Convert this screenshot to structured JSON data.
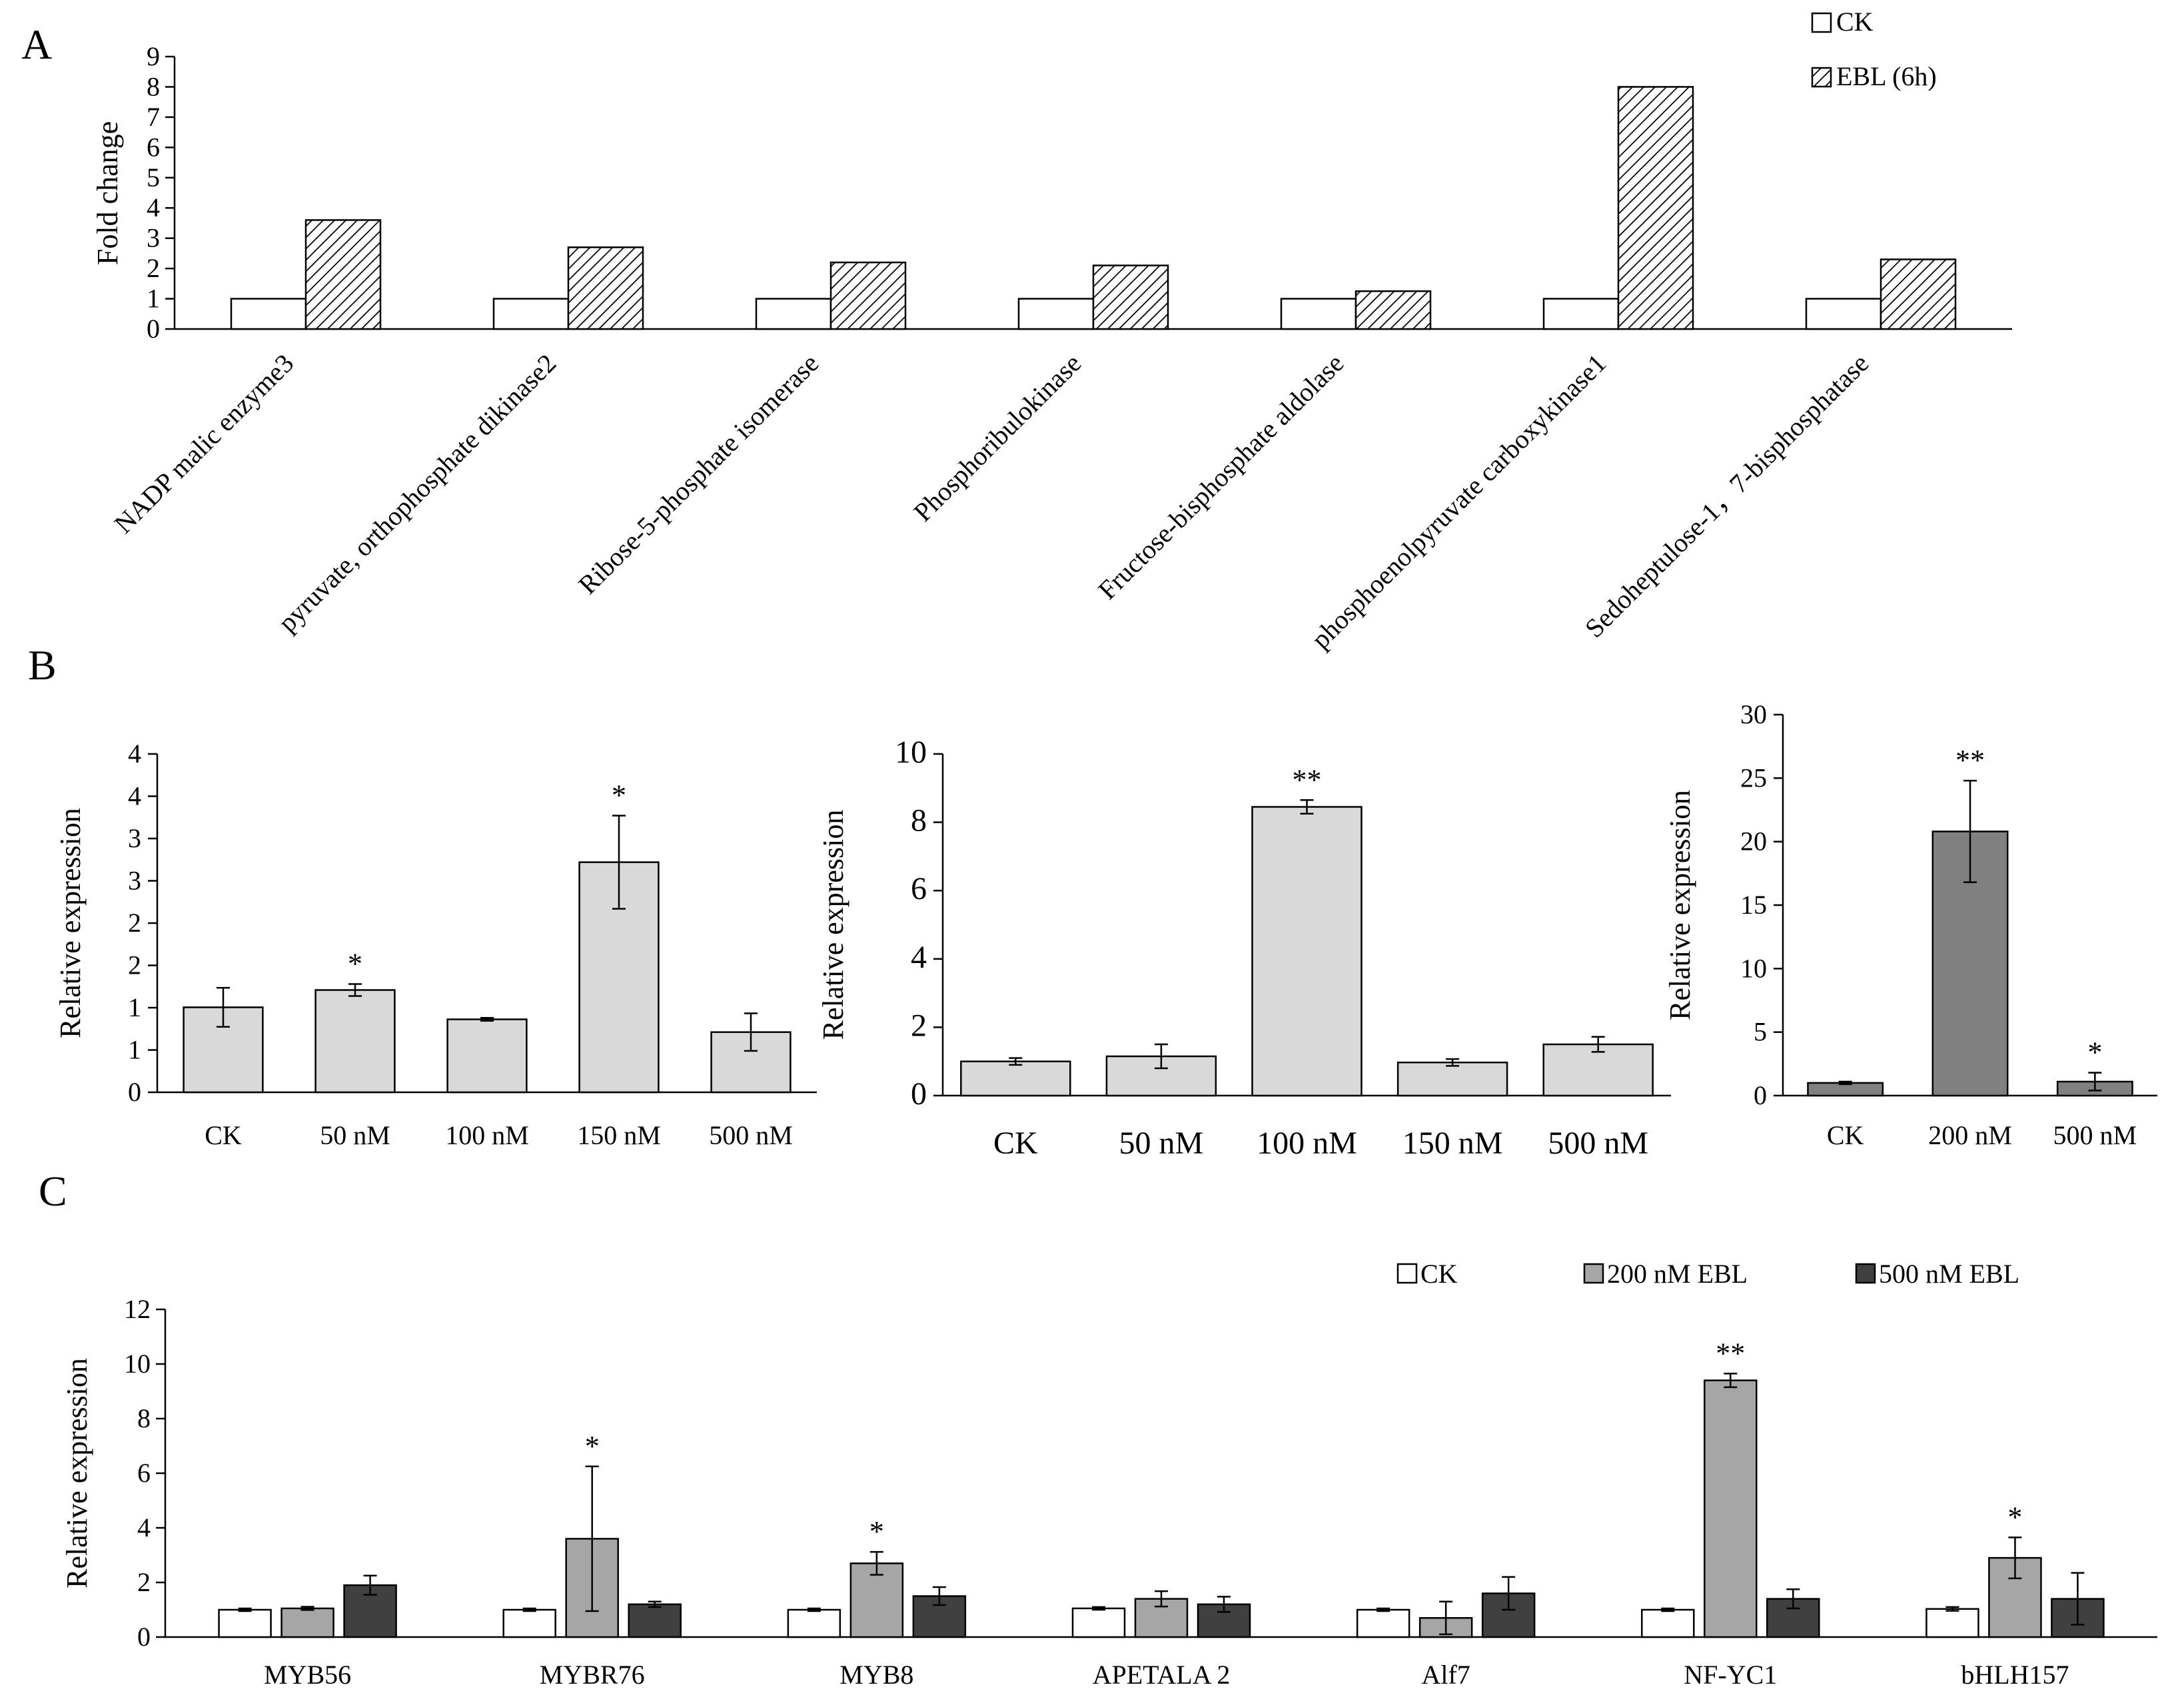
{
  "panels": {
    "a": "A",
    "b": "B",
    "c": "C"
  },
  "colors": {
    "ck": "#ffffff",
    "light_gray": "#d9d9d9",
    "mid_gray": "#a6a6a6",
    "dark_gray": "#808080",
    "very_dark": "#404040",
    "outline": "#000000"
  },
  "chart_data": [
    {
      "id": "A",
      "type": "bar",
      "title": "",
      "ylabel": "Fold change",
      "xlabel": "",
      "ylim": [
        0,
        9
      ],
      "yticks": [
        0,
        1,
        2,
        3,
        4,
        5,
        6,
        7,
        8,
        9
      ],
      "categories": [
        "NADP malic enzyme3",
        "pyruvate, orthophosphate dikinase2",
        "Ribose-5-phosphate isomerase",
        "Phosphoribulokinase",
        "Fructose-bisphosphate aldolase",
        "phosphoenolpyruvate carboxykinase1",
        "Sedoheptulose-1，7-bisphosphatase"
      ],
      "series": [
        {
          "name": "CK",
          "values": [
            1,
            1,
            1,
            1,
            1,
            1,
            1
          ]
        },
        {
          "name": "EBL (6h)",
          "values": [
            3.6,
            2.7,
            2.2,
            2.1,
            1.25,
            8.0,
            2.3
          ]
        }
      ],
      "legend": "top-right"
    },
    {
      "id": "B1",
      "type": "bar",
      "ylabel": "Relative expression",
      "ylim": [
        0,
        4.5
      ],
      "ytick_labels": [
        "0",
        "1",
        "1",
        "2",
        "2",
        "3",
        "3",
        "4",
        "4"
      ],
      "categories": [
        "CK",
        "50 nM",
        "100 nM",
        "150 nM",
        "500 nM"
      ],
      "values": [
        1.13,
        1.36,
        0.97,
        3.06,
        0.8
      ],
      "errors": [
        0.26,
        0.08,
        0.02,
        0.62,
        0.25
      ],
      "annotations": [
        "",
        "*",
        "",
        "*",
        ""
      ]
    },
    {
      "id": "B2",
      "type": "bar",
      "ylabel": "Relative expression",
      "ylim": [
        0,
        10
      ],
      "yticks": [
        0,
        2,
        4,
        6,
        8,
        10
      ],
      "categories": [
        "CK",
        "50 nM",
        "100 nM",
        "150 nM",
        "500 nM"
      ],
      "values": [
        1.0,
        1.15,
        8.45,
        0.97,
        1.5
      ],
      "errors": [
        0.1,
        0.35,
        0.2,
        0.1,
        0.22
      ],
      "annotations": [
        "",
        "",
        "**",
        "",
        ""
      ]
    },
    {
      "id": "B3",
      "type": "bar",
      "ylabel": "Relative expression",
      "ylim": [
        0,
        30
      ],
      "yticks": [
        0,
        5,
        10,
        15,
        20,
        25,
        30
      ],
      "categories": [
        "CK",
        "200 nM",
        "500 nM"
      ],
      "values": [
        1.0,
        20.8,
        1.1
      ],
      "errors": [
        0.1,
        4.0,
        0.7
      ],
      "annotations": [
        "",
        "**",
        "*"
      ]
    },
    {
      "id": "C",
      "type": "bar",
      "ylabel": "Relative expression",
      "ylim": [
        0,
        12
      ],
      "yticks": [
        0,
        2,
        4,
        6,
        8,
        10,
        12
      ],
      "categories": [
        "MYB56",
        "MYBR76",
        "MYB8",
        "APETALA 2",
        "Alf7",
        "NF-YC1",
        "bHLH157"
      ],
      "series": [
        {
          "name": "CK",
          "values": [
            1.0,
            1.0,
            1.0,
            1.05,
            1.0,
            1.0,
            1.03
          ],
          "errors": [
            0.05,
            0.05,
            0.05,
            0.05,
            0.05,
            0.05,
            0.07
          ]
        },
        {
          "name": "200 nM EBL",
          "values": [
            1.05,
            3.6,
            2.7,
            1.4,
            0.7,
            9.4,
            2.9
          ],
          "errors": [
            0.06,
            2.65,
            0.42,
            0.28,
            0.6,
            0.25,
            0.75
          ]
        },
        {
          "name": "500 nM EBL",
          "values": [
            1.9,
            1.2,
            1.5,
            1.2,
            1.6,
            1.4,
            1.4
          ],
          "errors": [
            0.35,
            0.1,
            0.33,
            0.28,
            0.6,
            0.35,
            0.95
          ]
        }
      ],
      "annotations": [
        "",
        "*",
        "*",
        "",
        "",
        "**",
        "*"
      ],
      "legend": "top-right"
    }
  ]
}
